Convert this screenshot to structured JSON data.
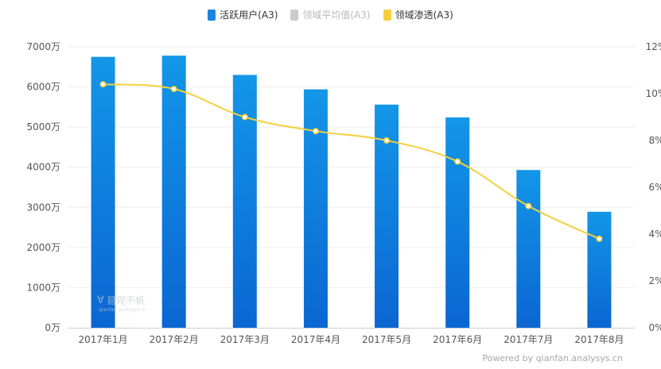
{
  "legend": [
    {
      "label": "活跃用户(A3)",
      "color": "#1a84de",
      "muted": false
    },
    {
      "label": "领域平均值(A3)",
      "color": "#cccccc",
      "muted": true
    },
    {
      "label": "领域渗透(A3)",
      "color": "#f7cf3b",
      "muted": false
    }
  ],
  "powered_by": "Powered by qianfan.analysys.cn",
  "watermark": {
    "mark": "∀",
    "name": "易观千帆",
    "url": "qianfan.analysys.cn"
  },
  "colors": {
    "bar_top": "#1396e8",
    "bar_bottom": "#0b66d2",
    "line": "#f7cf3b",
    "grid": "#eeeeee",
    "axis_text": "#555555"
  },
  "chart_data": {
    "type": "bar",
    "categories": [
      "2017年1月",
      "2017年2月",
      "2017年3月",
      "2017年4月",
      "2017年5月",
      "2017年6月",
      "2017年7月",
      "2017年8月"
    ],
    "series": [
      {
        "name": "活跃用户(A3)",
        "type": "bar",
        "axis": "left",
        "values": [
          6750,
          6780,
          6300,
          5940,
          5560,
          5240,
          3930,
          2890
        ]
      },
      {
        "name": "领域渗透(A3)",
        "type": "line",
        "axis": "right",
        "values": [
          10.4,
          10.2,
          9.0,
          8.4,
          8.0,
          7.1,
          5.2,
          3.8
        ]
      }
    ],
    "y_left": {
      "min": 0,
      "max": 7000,
      "step": 1000,
      "tick_labels": [
        "0万",
        "1000万",
        "2000万",
        "3000万",
        "4000万",
        "5000万",
        "6000万",
        "7000万"
      ]
    },
    "y_right": {
      "min": 0,
      "max": 12,
      "step": 2,
      "tick_labels": [
        "0%",
        "2%",
        "4%",
        "6%",
        "8%",
        "10%",
        "12%"
      ]
    },
    "legend_position": "top-center",
    "grid": true
  }
}
